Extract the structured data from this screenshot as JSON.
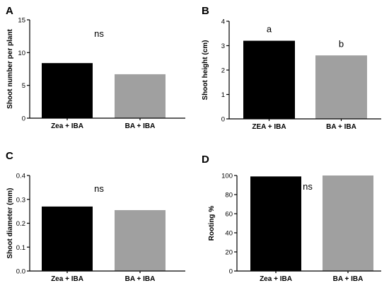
{
  "chart_data": [
    {
      "panel": "A",
      "type": "bar",
      "categories": [
        "Zea + IBA",
        "BA + IBA"
      ],
      "values": [
        8.4,
        6.7
      ],
      "colors": [
        "#000000",
        "#a0a0a0"
      ],
      "ylabel": "Shoot number per plant",
      "ylim": [
        0,
        15
      ],
      "yticks": [
        0,
        5,
        10,
        15
      ],
      "annotations": [
        "ns"
      ],
      "grid": false
    },
    {
      "panel": "B",
      "type": "bar",
      "categories": [
        "ZEA + IBA",
        "BA + IBA"
      ],
      "values": [
        3.2,
        2.6
      ],
      "colors": [
        "#000000",
        "#a0a0a0"
      ],
      "ylabel": "Shoot height (cm)",
      "ylim": [
        0,
        4
      ],
      "yticks": [
        0,
        1,
        2,
        3,
        4
      ],
      "bar_labels": [
        "a",
        "b"
      ],
      "grid": false
    },
    {
      "panel": "C",
      "type": "bar",
      "categories": [
        "Zea + IBA",
        "BA + IBA"
      ],
      "values": [
        0.27,
        0.255
      ],
      "colors": [
        "#000000",
        "#a0a0a0"
      ],
      "ylabel": "Shoot diameter (mm)",
      "ylim": [
        0,
        0.4
      ],
      "yticks": [
        "0.0",
        "0.1",
        "0.2",
        "0.3",
        "0.4"
      ],
      "annotations": [
        "ns"
      ],
      "grid": false
    },
    {
      "panel": "D",
      "type": "bar",
      "categories": [
        "Zea + IBA",
        "BA + IBA"
      ],
      "values": [
        99,
        100
      ],
      "colors": [
        "#000000",
        "#a0a0a0"
      ],
      "ylabel": "Rooting %",
      "ylim": [
        0,
        100
      ],
      "yticks": [
        0,
        20,
        40,
        60,
        80,
        100
      ],
      "annotations": [
        "ns"
      ],
      "grid": false
    }
  ]
}
